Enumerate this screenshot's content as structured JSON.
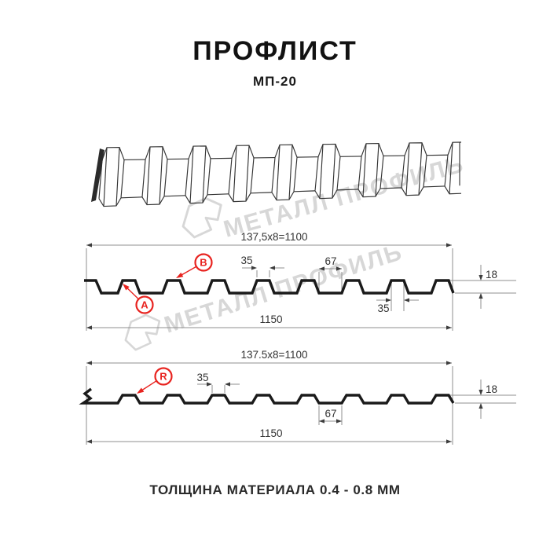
{
  "header": {
    "title": "ПРОФЛИСТ",
    "subtitle": "МП-20"
  },
  "footer": {
    "thickness_note": "ТОЛЩИНА МАТЕРИАЛА 0.4 - 0.8 ММ"
  },
  "watermark": {
    "brand": "МЕТАЛЛ ПРОФИЛЬ"
  },
  "colors": {
    "red": "#e8231f",
    "profile_line": "#1a1a1a",
    "dim_line": "#8f8f8f",
    "dim_text": "#333333",
    "arrow": "#3d3d3d",
    "sketch_line": "#333333",
    "watermark": "#d7d7d7",
    "title_text": "#121212"
  },
  "section_a": {
    "marker_a": "A",
    "marker_b": "B",
    "pitch": "137,5x8=1100",
    "overall": "1150",
    "rib_top": "35",
    "valley": "67",
    "rib_top_bottom": "35",
    "height": "18"
  },
  "section_r": {
    "marker_r": "R",
    "pitch": "137.5x8=1100",
    "overall": "1150",
    "rib_top": "35",
    "valley": "67",
    "height": "18"
  },
  "profile_specs": {
    "rib_count": 8,
    "pitch_mm": "137.5",
    "coverage_width_mm": "1100",
    "overall_width_mm": "1150",
    "rib_height_mm": "18",
    "rib_top_mm": "35",
    "valley_mm": "67",
    "thickness_range_mm": "0.4 - 0.8"
  }
}
